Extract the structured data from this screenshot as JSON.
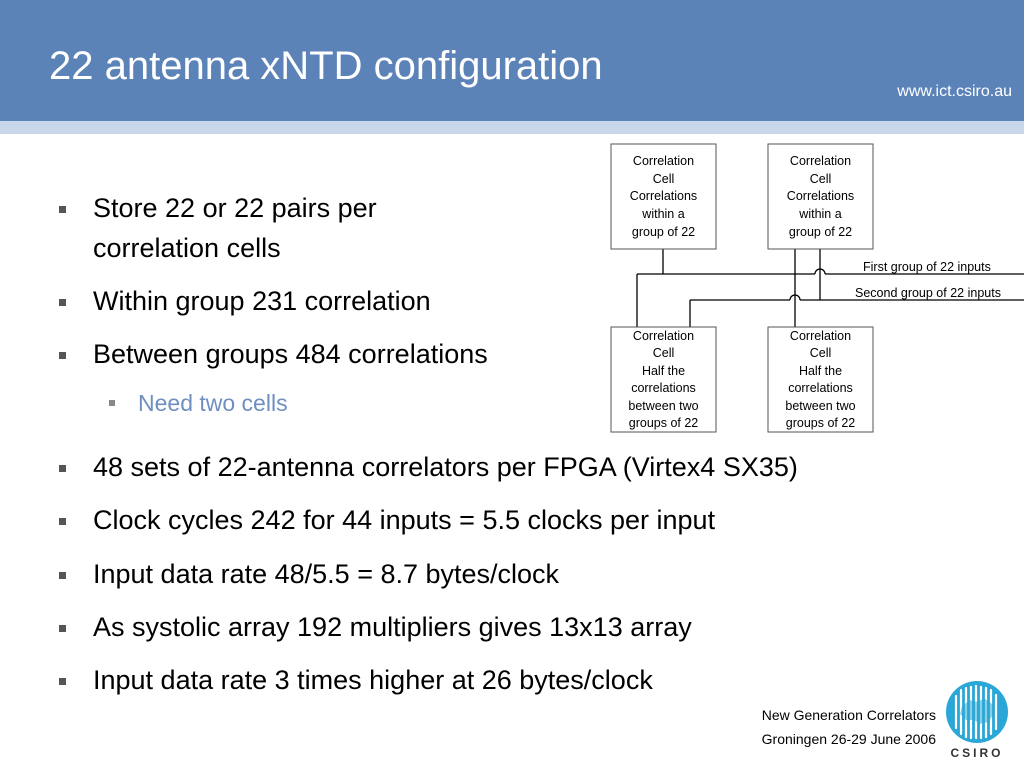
{
  "header": {
    "title": "22 antenna xNTD configuration",
    "url": "www.ict.csiro.au",
    "color": "#5b83b8"
  },
  "bullets": [
    {
      "line1": "Store 22 or 22 pairs per",
      "line2": "correlation cells"
    },
    {
      "line1": "Within group 231 correlation"
    },
    {
      "line1": "Between groups 484 correlations"
    }
  ],
  "sub_bullets": [
    {
      "text": "Need two cells"
    }
  ],
  "bullets_lower": [
    {
      "text": "48 sets of 22-antenna correlators per FPGA (Virtex4 SX35)"
    },
    {
      "text": "Clock cycles 242 for 44 inputs = 5.5 clocks per input"
    },
    {
      "text": "Input data rate 48/5.5 = 8.7 bytes/clock"
    },
    {
      "text": "As systolic array 192 multipliers gives 13x13 array"
    },
    {
      "text": "Input data rate 3 times higher at 26 bytes/clock"
    }
  ],
  "diagram": {
    "top_left": [
      "Correlation",
      "Cell",
      "Correlations",
      "within a",
      "group of 22"
    ],
    "top_right": [
      "Correlation",
      "Cell",
      "Correlations",
      "within a",
      "group of 22"
    ],
    "bottom_left": [
      "Correlation",
      "Cell",
      "Half the",
      "correlations",
      "between two",
      "groups of 22"
    ],
    "bottom_right": [
      "Correlation",
      "Cell",
      "Half the",
      "correlations",
      "between two",
      "groups of 22"
    ],
    "first_group_label": "First group of 22 inputs",
    "second_group_label": "Second group of 22 inputs"
  },
  "footer": {
    "line1": "New Generation Correlators",
    "line2": "Groningen 26-29 June 2006"
  },
  "logo": {
    "text": "CSIRO",
    "color": "#2aa7d6"
  }
}
